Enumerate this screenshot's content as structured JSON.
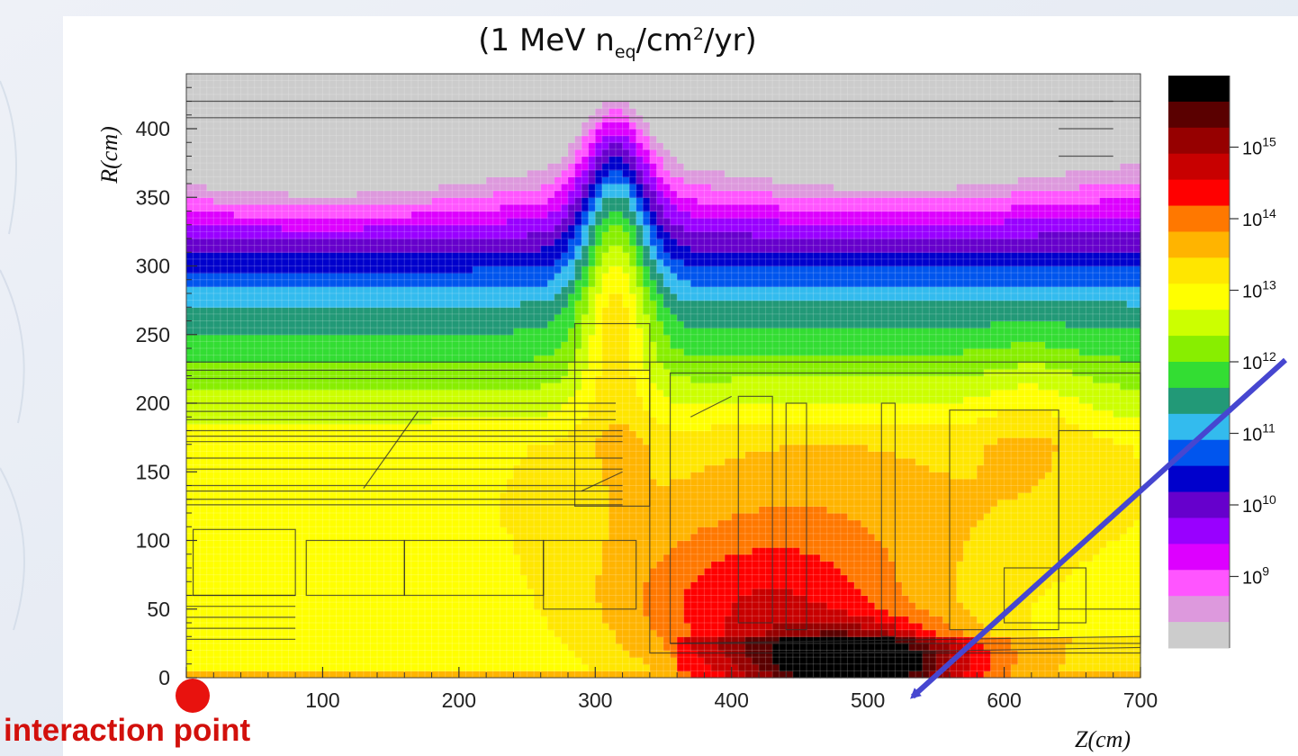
{
  "chart_data": {
    "type": "heatmap",
    "title": "(1 MeV n_eq/cm²/yr)",
    "title_parts": {
      "open": "(1 MeV n",
      "sub": "eq",
      "mid": "/cm",
      "sup": "2",
      "close": "/yr)"
    },
    "xlabel": "Z(cm)",
    "ylabel": "R(cm)",
    "xlim": [
      0,
      700
    ],
    "ylim": [
      0,
      440
    ],
    "x_ticks": [
      0,
      100,
      200,
      300,
      400,
      500,
      600,
      700
    ],
    "y_ticks": [
      0,
      50,
      100,
      150,
      200,
      250,
      300,
      350,
      400
    ],
    "grid": false,
    "colorbar": {
      "placement": "right",
      "scale": "log",
      "range": [
        100000000.0,
        1e+16
      ],
      "labels": [
        {
          "base": "10",
          "exp": "15",
          "value": 1000000000000000.0
        },
        {
          "base": "10",
          "exp": "14",
          "value": 100000000000000.0
        },
        {
          "base": "10",
          "exp": "13",
          "value": 10000000000000.0
        },
        {
          "base": "10",
          "exp": "12",
          "value": 1000000000000.0
        },
        {
          "base": "10",
          "exp": "11",
          "value": 100000000000.0
        },
        {
          "base": "10",
          "exp": "10",
          "value": 10000000000.0
        },
        {
          "base": "10",
          "exp": "9",
          "value": 1000000000.0
        }
      ],
      "colors": [
        "#000000",
        "#5a0000",
        "#960000",
        "#c80000",
        "#ff0000",
        "#ff7800",
        "#ffb400",
        "#ffe600",
        "#ffff00",
        "#ccff00",
        "#88ee00",
        "#33dd33",
        "#229977",
        "#33bbee",
        "#0055ee",
        "#0000cc",
        "#6600cc",
        "#9900ff",
        "#dd00ff",
        "#ff55ff",
        "#dd99dd",
        "#cccccc"
      ]
    },
    "field_anchors": {
      "comment": "flux values (log10 of 1 MeV neq/cm2/yr) sampled across the map",
      "points": [
        {
          "z": 520,
          "r": 10,
          "log10_flux": 15.6
        },
        {
          "z": 400,
          "r": 40,
          "log10_flux": 14.6
        },
        {
          "z": 150,
          "r": 60,
          "log10_flux": 13.0
        },
        {
          "z": 100,
          "r": 170,
          "log10_flux": 12.6
        },
        {
          "z": 100,
          "r": 260,
          "log10_flux": 11.0
        },
        {
          "z": 100,
          "r": 370,
          "log10_flux": 9.0
        },
        {
          "z": 300,
          "r": 350,
          "log10_flux": 11.0
        },
        {
          "z": 530,
          "r": 370,
          "log10_flux": 9.0
        }
      ]
    },
    "annotations": [
      {
        "text": "interaction point",
        "z": 0,
        "r": 0,
        "color": "#d2100c"
      },
      {
        "type": "arrow",
        "to_z": 520,
        "to_r": 5,
        "color": "#4646d0"
      }
    ]
  },
  "labels": {
    "interaction_point": "interaction point"
  }
}
